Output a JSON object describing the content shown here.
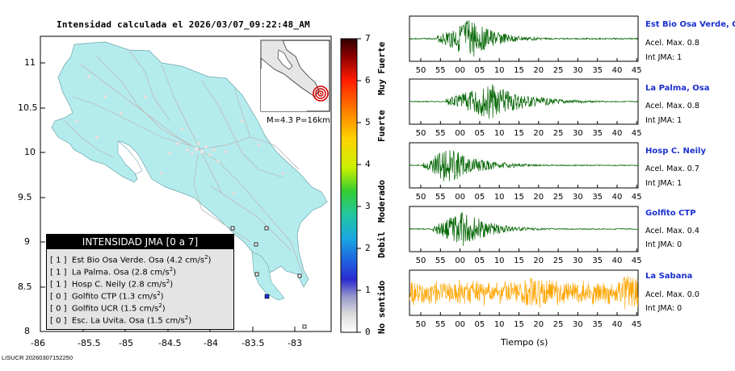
{
  "title": "Intensidad calculada el 2026/03/07_09:22:48_AM",
  "footer": "LISUCR 20260307152250",
  "map": {
    "x_ticks": [
      "-86",
      "-85.5",
      "-85",
      "-84.5",
      "-84",
      "-83.5",
      "-83"
    ],
    "y_ticks": [
      "11",
      "10.5",
      "10",
      "9.5",
      "9",
      "8.5",
      "8"
    ],
    "land_color": "#b4ecee",
    "epicenter": {
      "lon": -83.1,
      "lat": 8.6
    }
  },
  "inset": {
    "caption": "M=4.3 P=16km"
  },
  "legend": {
    "title": "INTENSIDAD JMA [0 a 7]",
    "rows": [
      {
        "int": "[ 1 ]",
        "name": "Est Bio Osa Verde. Osa",
        "acc": "(4.2 cm/s",
        "sup": "2",
        "close": ")"
      },
      {
        "int": "[ 1 ]",
        "name": "La Palma. Osa",
        "acc": "(2.8 cm/s",
        "sup": "2",
        "close": ")"
      },
      {
        "int": "[ 1 ]",
        "name": "Hosp C. Neily",
        "acc": "(2.8 cm/s",
        "sup": "2",
        "close": ")"
      },
      {
        "int": "[ 0 ]",
        "name": "Golfito CTP",
        "acc": "(1.3 cm/s",
        "sup": "2",
        "close": ")"
      },
      {
        "int": "[ 0 ]",
        "name": "Golfito UCR",
        "acc": "(1.5 cm/s",
        "sup": "2",
        "close": ")"
      },
      {
        "int": "[ 0 ]",
        "name": "Esc. La Uvita. Osa",
        "acc": "(1.5 cm/s",
        "sup": "2",
        "close": ")"
      }
    ]
  },
  "scale": {
    "labels": [
      "7",
      "6",
      "5",
      "4",
      "3",
      "2",
      "1",
      "0"
    ],
    "categories": [
      "Muy Fuerte",
      "Fuerte",
      "Moderado",
      "Debil",
      "No sentido"
    ]
  },
  "stations": [
    {
      "name": "Est Bio Osa Verde, Osa",
      "acel": "Acel. Max. 0.8",
      "jma": "Int JMA: 1",
      "color": "#006400",
      "bg": "#ffffff",
      "onset": 0.12,
      "peak": 0.27,
      "decay": 0.32,
      "amp": 1.0,
      "seed": 3
    },
    {
      "name": "La Palma, Osa",
      "acel": "Acel. Max. 0.8",
      "jma": "Int JMA: 1",
      "color": "#006400",
      "bg": "#ffffff",
      "onset": 0.16,
      "peak": 0.36,
      "decay": 0.45,
      "amp": 0.9,
      "seed": 7
    },
    {
      "name": "Hosp C. Neily",
      "acel": "Acel. Max. 0.7",
      "jma": "Int JMA: 1",
      "color": "#006400",
      "bg": "#ffffff",
      "onset": 0.06,
      "peak": 0.17,
      "decay": 0.38,
      "amp": 0.95,
      "seed": 11
    },
    {
      "name": "Golfito CTP",
      "acel": "Acel. Max. 0.4",
      "jma": "Int JMA: 0",
      "color": "#006400",
      "bg": "#ffffff",
      "onset": 0.1,
      "peak": 0.24,
      "decay": 0.34,
      "amp": 0.9,
      "seed": 17
    },
    {
      "name": "La Sabana",
      "acel": "Acel. Max. 0.0",
      "jma": "Int JMA: 0",
      "color": "#ffa500",
      "bg": "#ffffff",
      "onset": 0.0,
      "peak": 0.55,
      "decay": 1.0,
      "amp": 0.85,
      "seed": 23
    }
  ],
  "time_ticks": [
    "50",
    "55",
    "00",
    "05",
    "10",
    "15",
    "20",
    "25",
    "30",
    "35",
    "40",
    "45"
  ],
  "xlabel": "Tiempo (s)"
}
